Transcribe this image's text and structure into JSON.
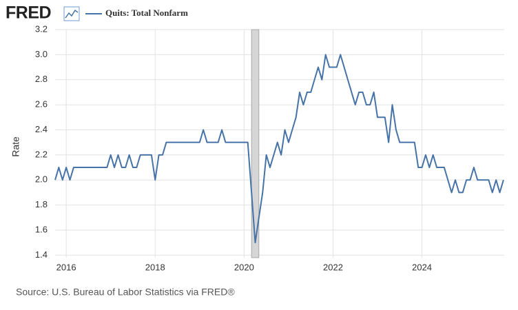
{
  "chart_data": {
    "type": "line",
    "logo": "FRED",
    "y_label": "Rate",
    "source": "Source: U.S. Bureau of Labor Statistics via FRED®",
    "x": [
      2015.75,
      2015.833,
      2015.917,
      2016,
      2016.083,
      2016.167,
      2016.25,
      2016.333,
      2016.417,
      2016.5,
      2016.583,
      2016.667,
      2016.75,
      2016.833,
      2016.917,
      2017,
      2017.083,
      2017.167,
      2017.25,
      2017.333,
      2017.417,
      2017.5,
      2017.583,
      2017.667,
      2017.75,
      2017.833,
      2017.917,
      2018,
      2018.083,
      2018.167,
      2018.25,
      2018.333,
      2018.417,
      2018.5,
      2018.583,
      2018.667,
      2018.75,
      2018.833,
      2018.917,
      2019,
      2019.083,
      2019.167,
      2019.25,
      2019.333,
      2019.417,
      2019.5,
      2019.583,
      2019.667,
      2019.75,
      2019.833,
      2019.917,
      2020,
      2020.083,
      2020.167,
      2020.25,
      2020.333,
      2020.417,
      2020.5,
      2020.583,
      2020.667,
      2020.75,
      2020.833,
      2020.917,
      2021,
      2021.083,
      2021.167,
      2021.25,
      2021.333,
      2021.417,
      2021.5,
      2021.583,
      2021.667,
      2021.75,
      2021.833,
      2021.917,
      2022,
      2022.083,
      2022.167,
      2022.25,
      2022.333,
      2022.417,
      2022.5,
      2022.583,
      2022.667,
      2022.75,
      2022.833,
      2022.917,
      2023,
      2023.083,
      2023.167,
      2023.25,
      2023.333,
      2023.417,
      2023.5,
      2023.583,
      2023.667,
      2023.75,
      2023.833,
      2023.917,
      2024,
      2024.083,
      2024.167,
      2024.25,
      2024.333,
      2024.417,
      2024.5,
      2024.583,
      2024.667,
      2024.75,
      2024.833,
      2024.917,
      2025,
      2025.083,
      2025.167,
      2025.25,
      2025.333,
      2025.417,
      2025.5,
      2025.583,
      2025.667,
      2025.75,
      2025.833
    ],
    "series": [
      {
        "name": "Quits: Total Nonfarm",
        "color": "#4572a7",
        "values": [
          2.0,
          2.1,
          2.0,
          2.1,
          2.0,
          2.1,
          2.1,
          2.1,
          2.1,
          2.1,
          2.1,
          2.1,
          2.1,
          2.1,
          2.1,
          2.2,
          2.1,
          2.2,
          2.1,
          2.1,
          2.2,
          2.1,
          2.1,
          2.2,
          2.2,
          2.2,
          2.2,
          2.0,
          2.2,
          2.2,
          2.3,
          2.3,
          2.3,
          2.3,
          2.3,
          2.3,
          2.3,
          2.3,
          2.3,
          2.3,
          2.4,
          2.3,
          2.3,
          2.3,
          2.3,
          2.4,
          2.3,
          2.3,
          2.3,
          2.3,
          2.3,
          2.3,
          2.3,
          1.9,
          1.5,
          1.7,
          1.9,
          2.2,
          2.1,
          2.2,
          2.3,
          2.2,
          2.4,
          2.3,
          2.4,
          2.5,
          2.7,
          2.6,
          2.7,
          2.7,
          2.8,
          2.9,
          2.8,
          3.0,
          2.9,
          2.9,
          2.9,
          3.0,
          2.9,
          2.8,
          2.7,
          2.6,
          2.7,
          2.7,
          2.6,
          2.6,
          2.7,
          2.5,
          2.5,
          2.5,
          2.3,
          2.6,
          2.4,
          2.3,
          2.3,
          2.3,
          2.3,
          2.3,
          2.1,
          2.1,
          2.2,
          2.1,
          2.2,
          2.1,
          2.1,
          2.1,
          2.0,
          1.9,
          2.0,
          1.9,
          1.9,
          2.0,
          2.0,
          2.1,
          2.0,
          2.0,
          2.0,
          2.0,
          1.9,
          2.0,
          1.9,
          2.0
        ]
      }
    ],
    "recessions": [
      [
        2020.167,
        2020.333
      ]
    ],
    "recession_color": "#d6d6d6",
    "xlim": [
      2015.75,
      2025.85
    ],
    "xticks": [
      2016,
      2018,
      2020,
      2022,
      2024
    ],
    "ylim": [
      1.38,
      3.2
    ],
    "yticks": [
      1.4,
      1.6,
      1.8,
      {
        "value": 2,
        "label": "2.0"
      },
      2.2,
      2.4,
      2.6,
      2.8,
      {
        "value": 3,
        "label": "3.0"
      },
      3.2
    ],
    "grid": true
  }
}
